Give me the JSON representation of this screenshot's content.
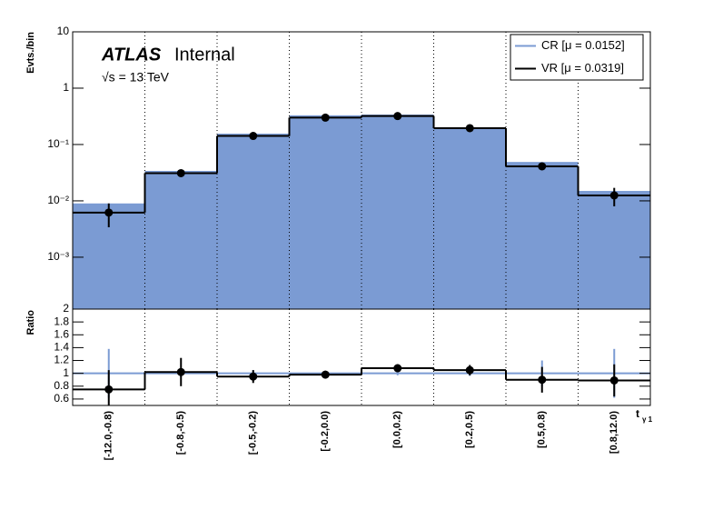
{
  "chart_data": [
    {
      "type": "step",
      "y_label": "Evts./bin",
      "experiment": "ATLAS",
      "status": "Internal",
      "energy": "√s = 13 TeV",
      "log_y": true,
      "ylim": [
        0.00012,
        10
      ],
      "yticks": [
        10,
        1,
        {
          "value": 0.1,
          "label": "10⁻¹"
        },
        {
          "value": 0.01,
          "label": "10⁻²"
        },
        {
          "value": 0.001,
          "label": "10⁻³"
        }
      ],
      "grid": "x",
      "legend": "upper right",
      "series": [
        {
          "name": "CR [μ = 0.0152]",
          "color": "#7b9bd3",
          "fill": true,
          "values": [
            0.009,
            0.034,
            0.156,
            0.33,
            0.34,
            0.2,
            0.049,
            0.015
          ]
        },
        {
          "name": "VR [μ = 0.0319]",
          "color": "#000000",
          "marker": true,
          "values": [
            0.0062,
            0.031,
            0.142,
            0.3,
            0.32,
            0.195,
            0.041,
            0.0125
          ],
          "errors": [
            0.0028,
            0.004,
            0.01,
            0.015,
            0.015,
            0.012,
            0.005,
            0.0045
          ]
        }
      ]
    },
    {
      "type": "step",
      "y_label": "Ratio",
      "x_label": "t",
      "x_label_subscript": "γ 1",
      "categories": [
        "[-12.0,-0.8)",
        "[-0.8,-0.5)",
        "[-0.5,-0.2)",
        "[-0.2,0.0)",
        "[0.0,0.2)",
        "[0.2,0.5)",
        "[0.5,0.8)",
        "[0.8,12.0)"
      ],
      "ylim": [
        0.5,
        2
      ],
      "yticks": [
        0.6,
        0.8,
        1,
        1.2,
        1.4,
        1.6,
        1.8,
        2
      ],
      "grid": "x",
      "series": [
        {
          "color": "#7b9bd3",
          "values": [
            1,
            1,
            1,
            1,
            1,
            1,
            1,
            1
          ],
          "errors": [
            0.38,
            0.06,
            0.05,
            0.03,
            0.03,
            0.04,
            0.2,
            0.38
          ]
        },
        {
          "color": "#000000",
          "marker": true,
          "values": [
            0.75,
            1.02,
            0.95,
            0.98,
            1.08,
            1.05,
            0.9,
            0.89
          ],
          "errors": [
            0.3,
            0.22,
            0.1,
            0.06,
            0.06,
            0.08,
            0.2,
            0.25
          ]
        }
      ]
    }
  ]
}
